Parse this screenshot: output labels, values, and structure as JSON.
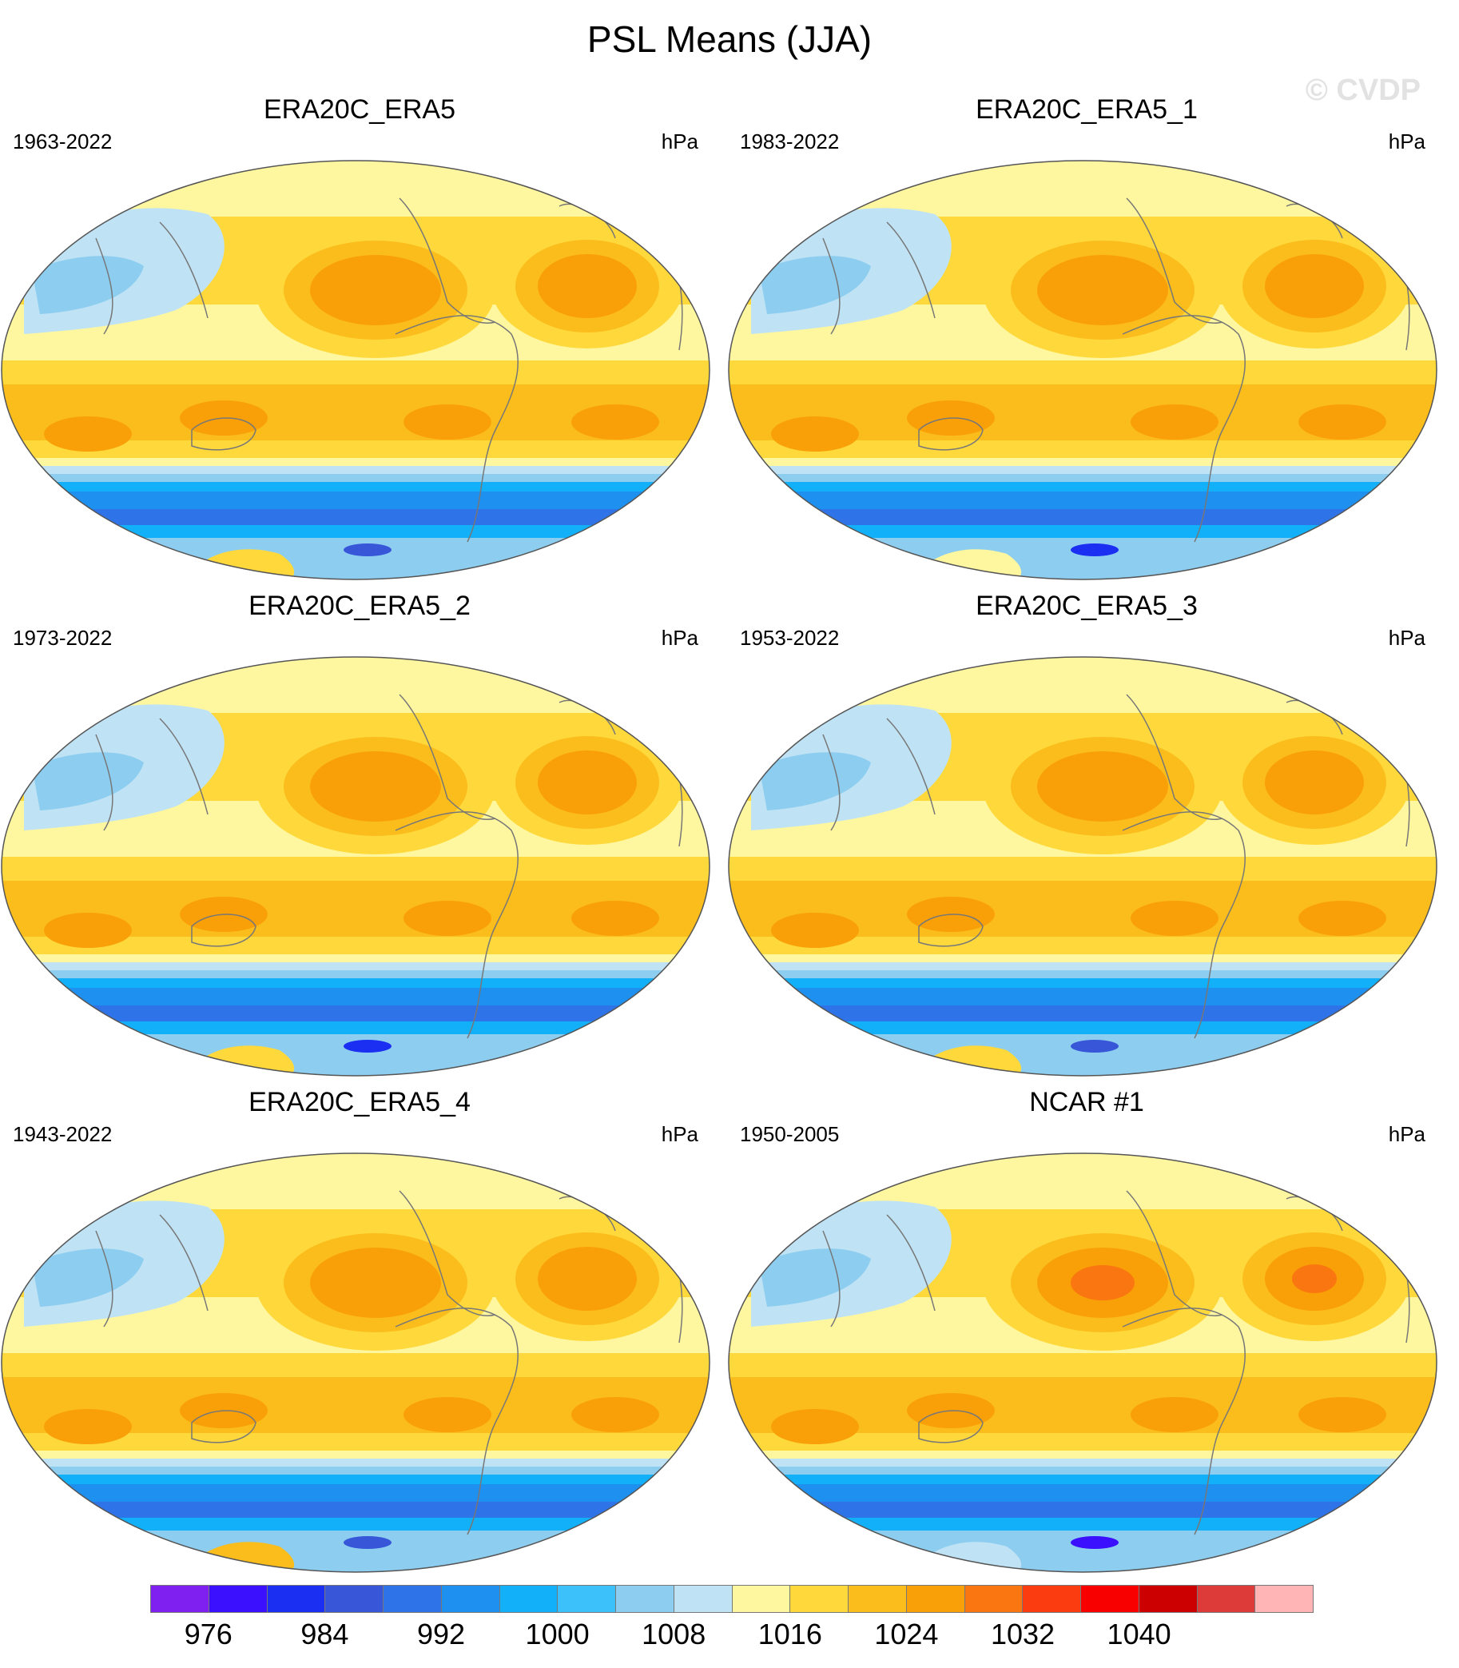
{
  "title": "PSL Means (JJA)",
  "watermark": "© CVDP",
  "chart_data": {
    "type": "heatmap",
    "variable": "PSL",
    "season": "JJA",
    "projection": "Robinson, centered on Pacific",
    "units": "hPa",
    "colorbar": {
      "levels": [
        976,
        980,
        984,
        988,
        992,
        996,
        1000,
        1004,
        1008,
        1012,
        1016,
        1020,
        1024,
        1028,
        1032,
        1036,
        1040,
        1044,
        1048
      ],
      "tick_labels": [
        "976",
        "984",
        "992",
        "1000",
        "1008",
        "1016",
        "1024",
        "1032",
        "1040"
      ],
      "colors": [
        "#7f1ff0",
        "#3a10ff",
        "#1b2ff2",
        "#3856d8",
        "#2f73e8",
        "#1e90f0",
        "#12b0f8",
        "#3cc1fa",
        "#8ccdf0",
        "#bfe2f4",
        "#fff7a0",
        "#ffd93c",
        "#fbbd1c",
        "#f9a008",
        "#f97610",
        "#fa3c10",
        "#f80000",
        "#cc0000",
        "#dd3a3a",
        "#ffb5b5"
      ]
    },
    "panels": [
      {
        "title": "ERA20C_ERA5",
        "years": "1963-2022",
        "units": "hPa",
        "pacific_high_hPa": 1026,
        "atlantic_high_hPa": 1026,
        "southern_ocean_min_hPa": 984,
        "antarctic_hPa": 1018
      },
      {
        "title": "ERA20C_ERA5_1",
        "years": "1983-2022",
        "units": "hPa",
        "pacific_high_hPa": 1026,
        "atlantic_high_hPa": 1026,
        "southern_ocean_min_hPa": 980,
        "antarctic_hPa": 1012
      },
      {
        "title": "ERA20C_ERA5_2",
        "years": "1973-2022",
        "units": "hPa",
        "pacific_high_hPa": 1026,
        "atlantic_high_hPa": 1026,
        "southern_ocean_min_hPa": 980,
        "antarctic_hPa": 1018
      },
      {
        "title": "ERA20C_ERA5_3",
        "years": "1953-2022",
        "units": "hPa",
        "pacific_high_hPa": 1026,
        "atlantic_high_hPa": 1026,
        "southern_ocean_min_hPa": 984,
        "antarctic_hPa": 1018
      },
      {
        "title": "ERA20C_ERA5_4",
        "years": "1943-2022",
        "units": "hPa",
        "pacific_high_hPa": 1026,
        "atlantic_high_hPa": 1026,
        "southern_ocean_min_hPa": 984,
        "antarctic_hPa": 1020
      },
      {
        "title": "NCAR #1",
        "years": "1950-2005",
        "units": "hPa",
        "pacific_high_hPa": 1030,
        "atlantic_high_hPa": 1028,
        "southern_ocean_min_hPa": 976,
        "antarctic_hPa": 1008
      }
    ]
  }
}
